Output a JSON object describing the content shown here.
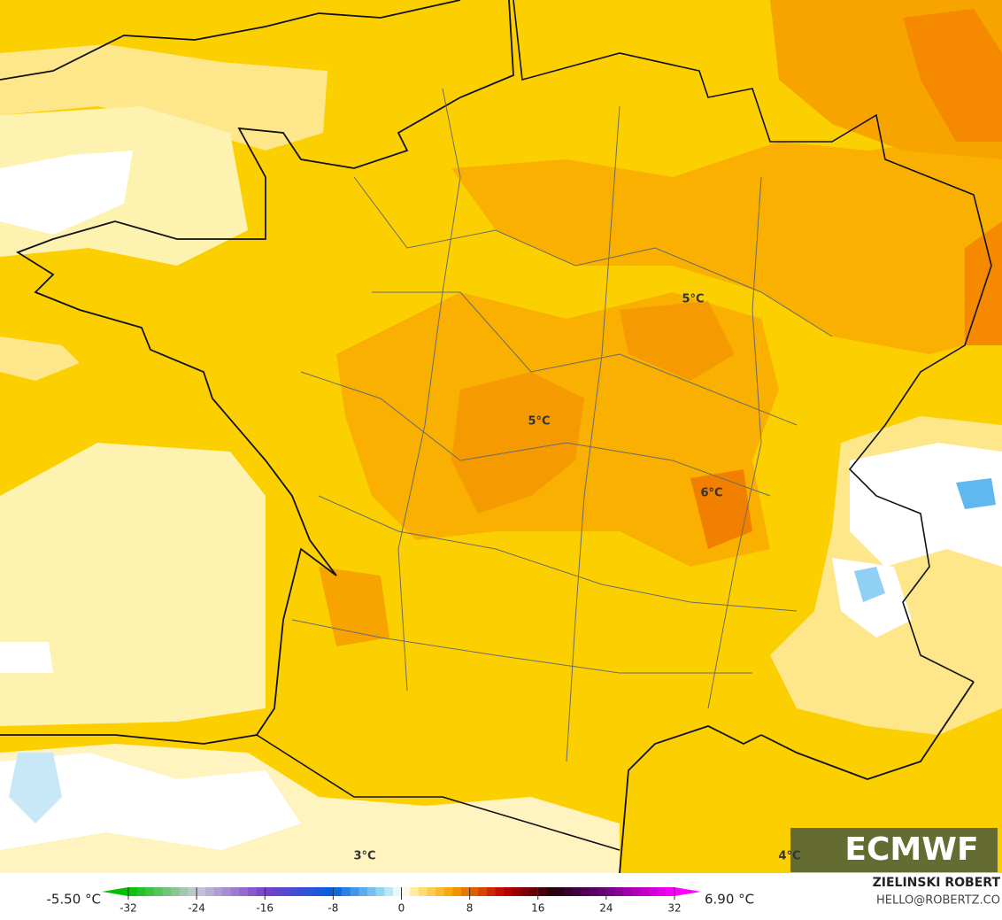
{
  "map": {
    "labels": [
      {
        "text": "5°C",
        "pos": "center"
      },
      {
        "text": "5°C",
        "pos": "northeast"
      },
      {
        "text": "6°C",
        "pos": "rhone"
      },
      {
        "text": "3°C",
        "pos": "pyrenees"
      },
      {
        "text": "4°C",
        "pos": "mediterranean"
      }
    ],
    "logo": "ECMWF"
  },
  "colorbar": {
    "min_label": "-5.50 °C",
    "max_label": "6.90 °C",
    "range": [
      -32,
      32
    ],
    "ticks": [
      -32,
      -24,
      -16,
      -8,
      0,
      8,
      16,
      24,
      32
    ],
    "stops": [
      {
        "value": -32,
        "color": "#00c000"
      },
      {
        "value": -24,
        "color": "#c8c8d8"
      },
      {
        "value": -16,
        "color": "#7a40c8"
      },
      {
        "value": -8,
        "color": "#0060e0"
      },
      {
        "value": -2,
        "color": "#a0e0f0"
      },
      {
        "value": 0,
        "color": "#ffffff"
      },
      {
        "value": 2,
        "color": "#ffe680"
      },
      {
        "value": 6,
        "color": "#f7a000"
      },
      {
        "value": 12,
        "color": "#c00000"
      },
      {
        "value": 18,
        "color": "#200010"
      },
      {
        "value": 24,
        "color": "#700080"
      },
      {
        "value": 32,
        "color": "#ff00ff"
      }
    ]
  },
  "credit": {
    "name": "ZIELINSKI ROBERT",
    "email": "HELLO@ROBERTZ.CO"
  }
}
